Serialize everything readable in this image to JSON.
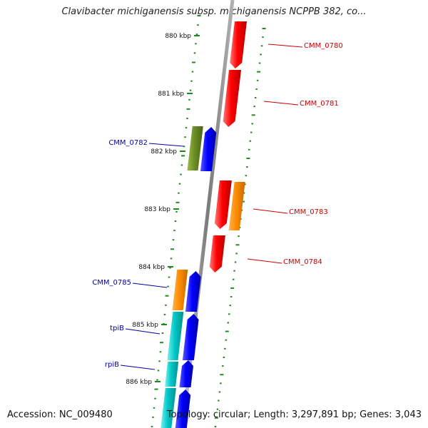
{
  "title": "Clavibacter michiganensis subsp. michiganensis NCPPB 382, co...",
  "footer": {
    "accession": "Accession: NC_009480",
    "summary": "Topology: circular; Length: 3,297,891 bp; Genes: 3,043"
  },
  "scale_ticks": [
    "880 kbp",
    "881 kbp",
    "882 kbp",
    "883 kbp",
    "884 kbp",
    "885 kbp",
    "886 kbp"
  ],
  "genes": [
    {
      "label": "CMM_0780",
      "strand": "reverse",
      "color": "#cc0000"
    },
    {
      "label": "CMM_0781",
      "strand": "reverse",
      "color": "#cc0000"
    },
    {
      "label": "CMM_0782",
      "strand": "forward",
      "color": "#0000aa"
    },
    {
      "label": "CMM_0783",
      "strand": "reverse",
      "color": "#cc0000"
    },
    {
      "label": "CMM_0784",
      "strand": "reverse",
      "color": "#cc0000"
    },
    {
      "label": "CMM_0785",
      "strand": "forward",
      "color": "#0000aa"
    },
    {
      "label": "tpiB",
      "strand": "forward",
      "color": "#0000aa"
    },
    {
      "label": "rpiB",
      "strand": "forward",
      "color": "#0000aa"
    }
  ],
  "colors": {
    "forward_cds": "#0000ee",
    "reverse_cds": "#ee0000",
    "cog_green": "#6b8e23",
    "cog_orange": "#ff8c00",
    "cog_cyan": "#00c8c8",
    "gc_dots": "#228B22",
    "backbone": "#8a8a8a"
  }
}
